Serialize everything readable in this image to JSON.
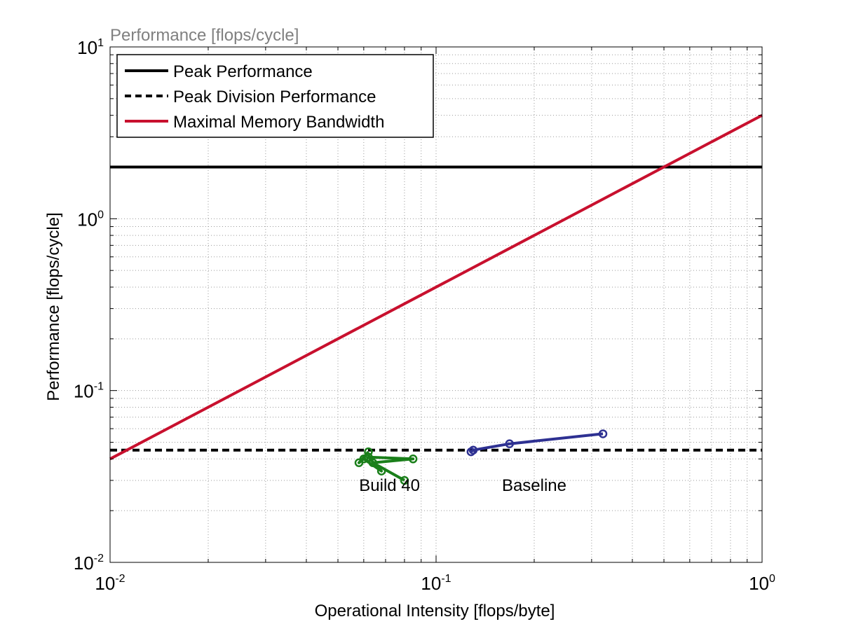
{
  "chart_data": {
    "type": "line",
    "title": "Performance [flops/cycle]",
    "xlabel": "Operational Intensity [flops/byte]",
    "ylabel": "Performance [flops/cycle]",
    "xscale": "log",
    "yscale": "log",
    "xlim": [
      0.01,
      1
    ],
    "ylim": [
      0.01,
      10
    ],
    "xticks": [
      {
        "base": "10",
        "exp": "-2",
        "value": 0.01
      },
      {
        "base": "10",
        "exp": "-1",
        "value": 0.1
      },
      {
        "base": "10",
        "exp": "0",
        "value": 1
      }
    ],
    "yticks": [
      {
        "base": "10",
        "exp": "-2",
        "value": 0.01
      },
      {
        "base": "10",
        "exp": "-1",
        "value": 0.1
      },
      {
        "base": "10",
        "exp": "0",
        "value": 1
      },
      {
        "base": "10",
        "exp": "1",
        "value": 10
      }
    ],
    "grid": true,
    "legend_position": "top-left",
    "series": [
      {
        "name": "Peak Performance",
        "style": "solid",
        "color": "#000000",
        "x": [
          0.01,
          1
        ],
        "y": [
          2,
          2
        ]
      },
      {
        "name": "Peak Division Performance",
        "style": "dashed",
        "color": "#000000",
        "x": [
          0.01,
          1
        ],
        "y": [
          0.045,
          0.045
        ]
      },
      {
        "name": "Maximal Memory Bandwidth",
        "style": "solid",
        "color": "#c8102e",
        "x": [
          0.01,
          1
        ],
        "y": [
          0.04,
          4
        ]
      },
      {
        "label": "Build 40",
        "style": "solid-markers",
        "color": "#1a7f1a",
        "x": [
          0.062,
          0.058,
          0.06,
          0.068,
          0.062,
          0.085,
          0.064,
          0.08
        ],
        "y": [
          0.044,
          0.038,
          0.04,
          0.034,
          0.041,
          0.04,
          0.038,
          0.03
        ]
      },
      {
        "label": "Baseline",
        "style": "solid-markers",
        "color": "#2e3192",
        "x": [
          0.128,
          0.13,
          0.168,
          0.325
        ],
        "y": [
          0.044,
          0.045,
          0.049,
          0.056
        ]
      }
    ],
    "annotations": [
      {
        "text": "Build 40",
        "x": 0.072,
        "y": 0.026
      },
      {
        "text": "Baseline",
        "x": 0.2,
        "y": 0.026
      }
    ]
  }
}
